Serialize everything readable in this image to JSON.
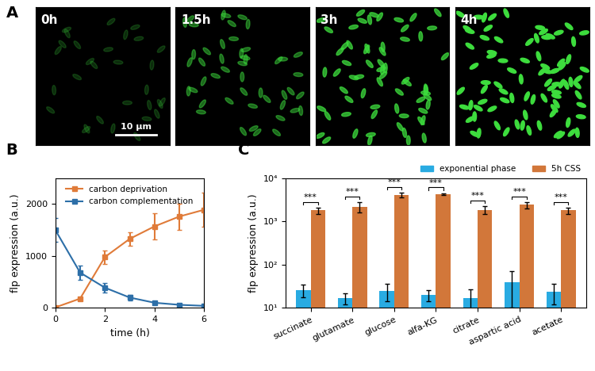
{
  "images": {
    "panel": "A",
    "frames": [
      "0h",
      "1.5h",
      "3h",
      "4h"
    ],
    "scale_bar": "10 μm"
  },
  "chart_data": [
    {
      "type": "line",
      "panel": "B",
      "xlabel": "time (h)",
      "ylabel": "flp expression (a.u.)",
      "x": [
        0,
        1,
        2,
        3,
        4,
        5,
        6
      ],
      "xlim": [
        0,
        6
      ],
      "xticks": [
        0,
        2,
        4,
        6
      ],
      "ylim": [
        0,
        2500
      ],
      "yticks": [
        0,
        1000,
        2000
      ],
      "legend": "upper center",
      "series": [
        {
          "name": "carbon deprivation",
          "color": "#e07b39",
          "marker": "square",
          "values": [
            10,
            180,
            980,
            1330,
            1570,
            1760,
            1890
          ],
          "errors": [
            5,
            20,
            130,
            130,
            250,
            250,
            330
          ]
        },
        {
          "name": "carbon complementation",
          "color": "#2d6fa8",
          "marker": "square",
          "values": [
            1500,
            680,
            390,
            200,
            100,
            60,
            40
          ],
          "errors": [
            230,
            140,
            90,
            50,
            20,
            15,
            10
          ]
        }
      ]
    },
    {
      "type": "bar",
      "panel": "C",
      "log": "y",
      "ylabel": "flp expression (a.u.)",
      "categories": [
        "succinate",
        "glutamate",
        "glucose",
        "alfa-KG",
        "citrate",
        "aspartic acid",
        "acetate"
      ],
      "ylim": [
        10,
        10000
      ],
      "yticks": [
        {
          "value": 10,
          "label": "10¹"
        },
        {
          "value": 100,
          "label": "10²"
        },
        {
          "value": 1000,
          "label": "10³"
        },
        {
          "value": 10000,
          "label": "10⁴"
        }
      ],
      "legend": "upper right",
      "annotations": [
        "***",
        "***",
        "***",
        "***",
        "***",
        "***",
        "***"
      ],
      "series": [
        {
          "name": "exponential phase",
          "color": "#29abe2",
          "values": [
            26,
            17,
            25,
            20,
            17,
            40,
            24
          ],
          "errors": [
            8,
            5,
            11,
            6,
            10,
            30,
            12
          ]
        },
        {
          "name": "5h CSS",
          "color": "#d2773a",
          "values": [
            1800,
            2200,
            4100,
            4300,
            1850,
            2400,
            1800
          ],
          "errors": [
            300,
            600,
            500,
            200,
            400,
            400,
            300
          ]
        }
      ]
    }
  ]
}
